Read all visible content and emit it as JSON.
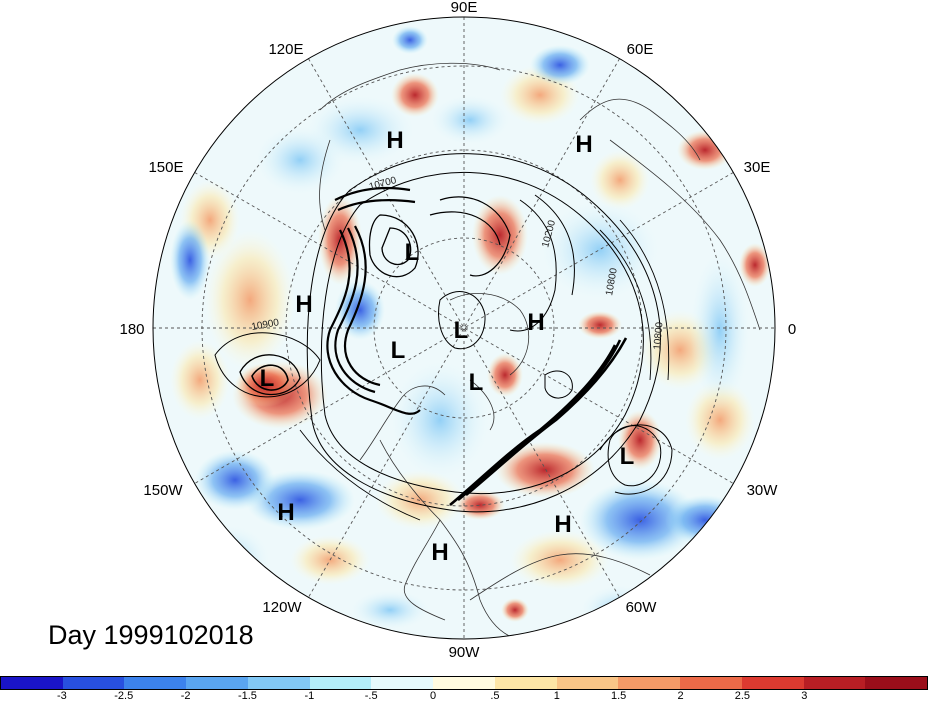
{
  "map": {
    "projection": "north-polar-stereographic",
    "longitude_labels": [
      {
        "text": "90E",
        "lon": 90
      },
      {
        "text": "60E",
        "lon": 60
      },
      {
        "text": "30E",
        "lon": 30
      },
      {
        "text": "0",
        "lon": 0
      },
      {
        "text": "30W",
        "lon": -30
      },
      {
        "text": "60W",
        "lon": -60
      },
      {
        "text": "90W",
        "lon": -90
      },
      {
        "text": "120W",
        "lon": -120
      },
      {
        "text": "150W",
        "lon": -150
      },
      {
        "text": "180",
        "lon": 180
      },
      {
        "text": "150E",
        "lon": 150
      },
      {
        "text": "120E",
        "lon": 120
      }
    ],
    "pressure_centers": [
      {
        "type": "H",
        "name": "high-siberia"
      },
      {
        "type": "H",
        "name": "high-europe"
      },
      {
        "type": "L",
        "name": "low-kamchatka"
      },
      {
        "type": "H",
        "name": "high-pacific"
      },
      {
        "type": "L",
        "name": "low-pole"
      },
      {
        "type": "L",
        "name": "low-arctic-canada"
      },
      {
        "type": "H",
        "name": "high-greenland"
      },
      {
        "type": "L",
        "name": "low-baffin"
      },
      {
        "type": "L",
        "name": "low-aleutian"
      },
      {
        "type": "L",
        "name": "low-atlantic"
      },
      {
        "type": "H",
        "name": "high-ne-pacific"
      },
      {
        "type": "H",
        "name": "high-mexico"
      },
      {
        "type": "H",
        "name": "high-subtropical-atlantic"
      }
    ],
    "contour_labels": [
      "10700",
      "10900",
      "10200",
      "10800",
      "10800"
    ]
  },
  "title": "Day 1999102018",
  "colorbar": {
    "colors": [
      "#1a14c8",
      "#2850e0",
      "#3c82ec",
      "#5aa5f0",
      "#82c8f5",
      "#b4eefa",
      "#e6fafc",
      "#fffbe0",
      "#fde6a6",
      "#f9c587",
      "#f49a67",
      "#ec6a48",
      "#dc3a30",
      "#b81e24",
      "#9a0e1a"
    ],
    "tick_labels": [
      "-3",
      "-2.5",
      "-2",
      "-1.5",
      "-1",
      "-.5",
      "0",
      ".5",
      "1",
      "1.5",
      "2",
      "2.5",
      "3"
    ]
  }
}
